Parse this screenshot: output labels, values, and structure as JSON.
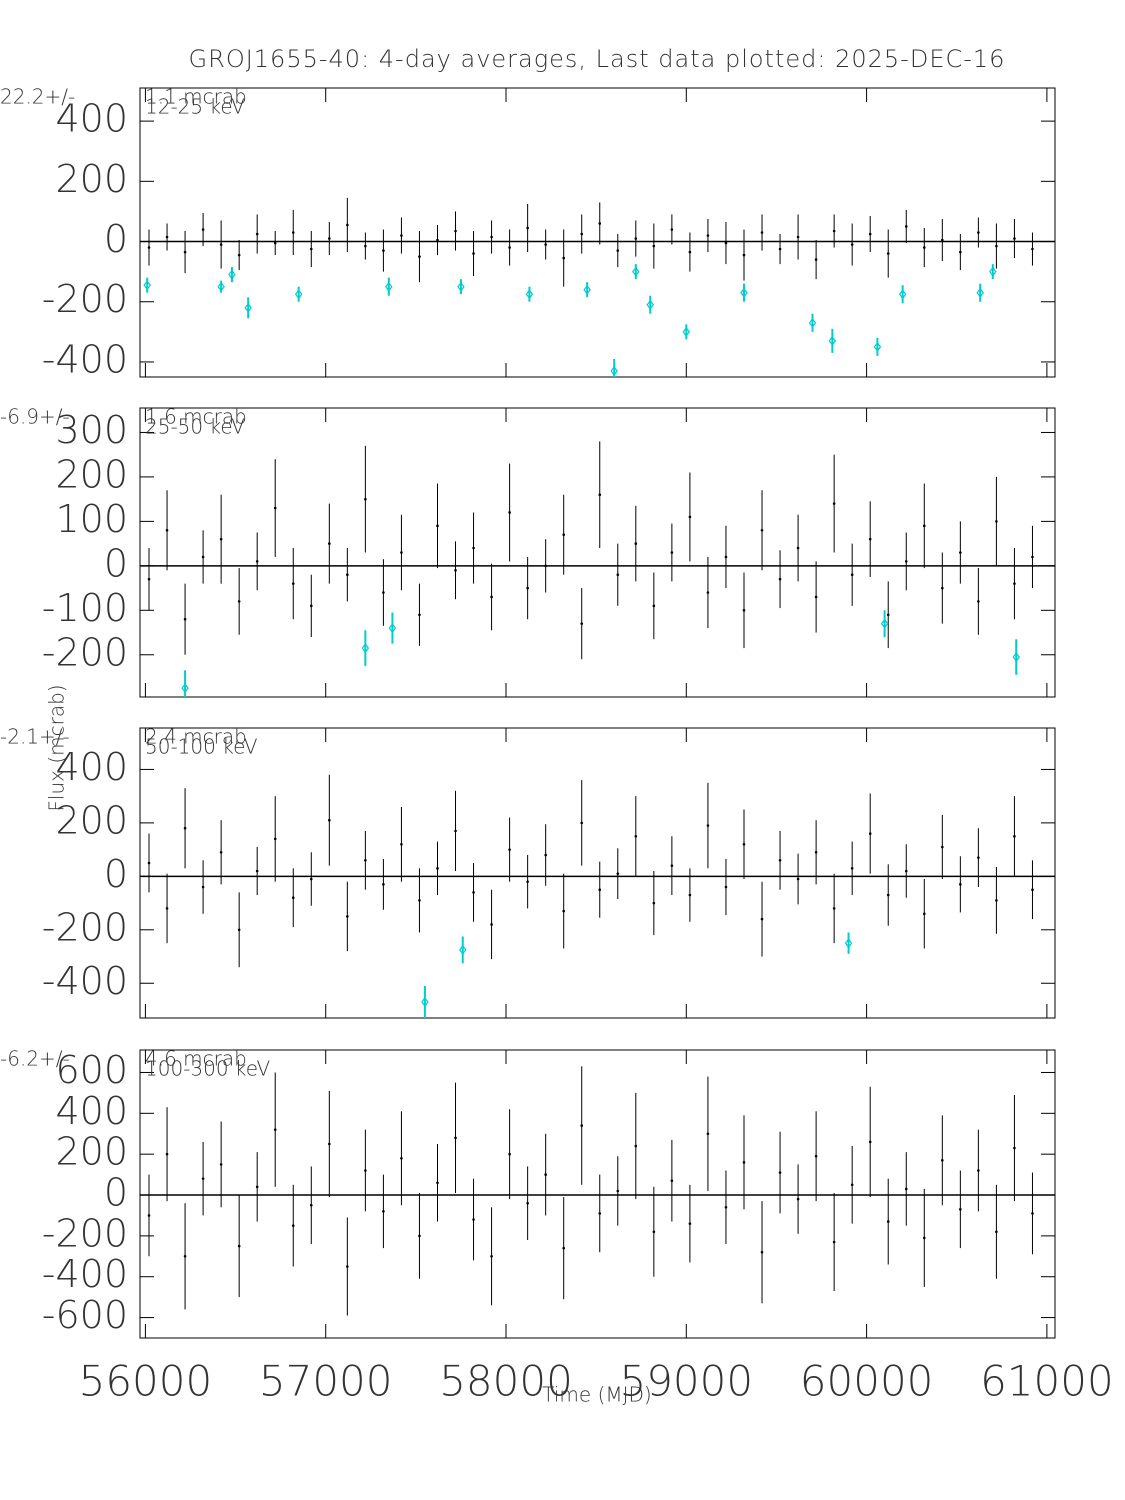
{
  "chart_data": [
    {
      "type": "errorbar",
      "title": "GROJ1655-40:  4-day averages,  Last data plotted: 2025-DEC-16",
      "band_label": "12-25 keV",
      "mean_label": "22.2+/-",
      "err_label": "1.1 mcrab",
      "xlim": [
        55970,
        61045
      ],
      "xticks": [
        56000,
        57000,
        58000,
        59000,
        60000,
        61000
      ],
      "ylim": [
        -450,
        510
      ],
      "yticks": [
        -400,
        -200,
        0,
        200,
        400
      ],
      "series": [
        {
          "color": "#000000",
          "x": [
            56020,
            56120,
            56220,
            56320,
            56420,
            56520,
            56620,
            56720,
            56820,
            56920,
            57020,
            57120,
            57220,
            57320,
            57420,
            57520,
            57620,
            57720,
            57820,
            57920,
            58020,
            58120,
            58220,
            58320,
            58420,
            58520,
            58620,
            58720,
            58820,
            58920,
            59020,
            59120,
            59220,
            59320,
            59420,
            59520,
            59620,
            59720,
            59820,
            59920,
            60020,
            60120,
            60220,
            60320,
            60420,
            60520,
            60620,
            60720,
            60820,
            60920
          ],
          "values": [
            -20,
            15,
            -35,
            40,
            -10,
            -45,
            25,
            -5,
            30,
            -25,
            10,
            55,
            -15,
            -30,
            20,
            -50,
            5,
            35,
            -40,
            15,
            -20,
            45,
            -10,
            -55,
            25,
            60,
            -30,
            10,
            -15,
            40,
            -35,
            20,
            -5,
            -45,
            30,
            -25,
            15,
            -60,
            35,
            -10,
            25,
            -40,
            50,
            -20,
            5,
            -35,
            30,
            -15,
            10,
            -25
          ],
          "errors": [
            60,
            45,
            70,
            55,
            80,
            50,
            65,
            40,
            75,
            60,
            55,
            90,
            45,
            70,
            60,
            85,
            50,
            65,
            75,
            55,
            60,
            80,
            50,
            95,
            65,
            70,
            55,
            60,
            75,
            50,
            65,
            55,
            70,
            85,
            60,
            50,
            75,
            65,
            55,
            70,
            60,
            80,
            55,
            65,
            70,
            60,
            50,
            75,
            65,
            55
          ]
        },
        {
          "color": "#00cccc",
          "x": [
            56010,
            56420,
            56480,
            56570,
            56850,
            57350,
            57750,
            58130,
            58450,
            58600,
            58720,
            58800,
            59000,
            59320,
            59700,
            59810,
            60060,
            60200,
            60630,
            60700
          ],
          "values": [
            -145,
            -150,
            -110,
            -220,
            -175,
            -150,
            -150,
            -175,
            -160,
            -430,
            -100,
            -210,
            -300,
            -170,
            -270,
            -330,
            -350,
            -175,
            -170,
            -100
          ],
          "errors": [
            25,
            20,
            25,
            35,
            25,
            30,
            25,
            25,
            25,
            40,
            25,
            30,
            25,
            30,
            30,
            40,
            30,
            30,
            30,
            25
          ]
        }
      ]
    },
    {
      "type": "errorbar",
      "band_label": "25-50 keV",
      "mean_label": "-6.9+/-",
      "err_label": "1.6 mcrab",
      "ylabel": "Flux (mcrab)",
      "xlim": [
        55970,
        61045
      ],
      "xticks": [
        56000,
        57000,
        58000,
        59000,
        60000,
        61000
      ],
      "ylim": [
        -295,
        355
      ],
      "yticks": [
        -200,
        -100,
        0,
        100,
        200,
        300
      ],
      "series": [
        {
          "color": "#000000",
          "x": [
            56020,
            56120,
            56220,
            56320,
            56420,
            56520,
            56620,
            56720,
            56820,
            56920,
            57020,
            57120,
            57220,
            57320,
            57420,
            57520,
            57620,
            57720,
            57820,
            57920,
            58020,
            58120,
            58220,
            58320,
            58420,
            58520,
            58620,
            58720,
            58820,
            58920,
            59020,
            59120,
            59220,
            59320,
            59420,
            59520,
            59620,
            59720,
            59820,
            59920,
            60020,
            60120,
            60220,
            60320,
            60420,
            60520,
            60620,
            60720,
            60820,
            60920
          ],
          "values": [
            -30,
            80,
            -120,
            20,
            60,
            -80,
            10,
            130,
            -40,
            -90,
            50,
            -20,
            150,
            -60,
            30,
            -110,
            90,
            -10,
            40,
            -70,
            120,
            -50,
            0,
            70,
            -130,
            160,
            -20,
            50,
            -90,
            30,
            110,
            -60,
            20,
            -100,
            80,
            -30,
            40,
            -70,
            140,
            -20,
            60,
            -110,
            10,
            90,
            -50,
            30,
            -80,
            100,
            -40,
            20
          ],
          "errors": [
            70,
            90,
            80,
            60,
            100,
            75,
            65,
            110,
            80,
            70,
            90,
            60,
            120,
            75,
            85,
            70,
            95,
            65,
            80,
            75,
            110,
            70,
            60,
            90,
            80,
            120,
            70,
            85,
            75,
            65,
            100,
            80,
            70,
            85,
            90,
            65,
            75,
            80,
            110,
            70,
            85,
            75,
            65,
            95,
            80,
            70,
            75,
            100,
            80,
            70
          ]
        },
        {
          "color": "#00cccc",
          "x": [
            56220,
            57220,
            57370,
            60100,
            60830
          ],
          "values": [
            -275,
            -185,
            -140,
            -130,
            -205
          ],
          "errors": [
            40,
            40,
            35,
            30,
            40
          ]
        }
      ]
    },
    {
      "type": "errorbar",
      "band_label": "50-100 keV",
      "mean_label": "-2.1+/-",
      "err_label": "2.4 mcrab",
      "xlim": [
        55970,
        61045
      ],
      "xticks": [
        56000,
        57000,
        58000,
        59000,
        60000,
        61000
      ],
      "ylim": [
        -530,
        555
      ],
      "yticks": [
        -400,
        -200,
        0,
        200,
        400
      ],
      "series": [
        {
          "color": "#000000",
          "x": [
            56020,
            56120,
            56220,
            56320,
            56420,
            56520,
            56620,
            56720,
            56820,
            56920,
            57020,
            57120,
            57220,
            57320,
            57420,
            57520,
            57620,
            57720,
            57820,
            57920,
            58020,
            58120,
            58220,
            58320,
            58420,
            58520,
            58620,
            58720,
            58820,
            58920,
            59020,
            59120,
            59220,
            59320,
            59420,
            59520,
            59620,
            59720,
            59820,
            59920,
            60020,
            60120,
            60220,
            60320,
            60420,
            60520,
            60620,
            60720,
            60820,
            60920
          ],
          "values": [
            50,
            -120,
            180,
            -40,
            90,
            -200,
            20,
            140,
            -80,
            -10,
            210,
            -150,
            60,
            -30,
            120,
            -90,
            30,
            170,
            -60,
            -180,
            100,
            -20,
            80,
            -130,
            200,
            -50,
            10,
            150,
            -100,
            40,
            -70,
            190,
            -40,
            120,
            -160,
            60,
            -10,
            90,
            -120,
            30,
            160,
            -70,
            20,
            -140,
            110,
            -30,
            70,
            -90,
            150,
            -50
          ],
          "errors": [
            110,
            130,
            150,
            100,
            120,
            140,
            90,
            160,
            110,
            100,
            170,
            130,
            110,
            95,
            140,
            120,
            100,
            150,
            110,
            130,
            120,
            100,
            115,
            140,
            160,
            105,
            95,
            150,
            120,
            110,
            100,
            160,
            105,
            130,
            140,
            110,
            95,
            120,
            130,
            100,
            150,
            115,
            100,
            130,
            120,
            105,
            110,
            125,
            150,
            110
          ]
        },
        {
          "color": "#00cccc",
          "x": [
            57550,
            57760,
            59900
          ],
          "values": [
            -470,
            -275,
            -250
          ],
          "errors": [
            60,
            50,
            40
          ]
        }
      ]
    },
    {
      "type": "errorbar",
      "band_label": "100-300 keV",
      "mean_label": "-6.2+/-",
      "err_label": "4.6 mcrab",
      "xlabel": "Time (MJD)",
      "xlim": [
        55970,
        61045
      ],
      "xticks": [
        56000,
        57000,
        58000,
        59000,
        60000,
        61000
      ],
      "ylim": [
        -700,
        710
      ],
      "yticks": [
        -600,
        -400,
        -200,
        0,
        200,
        400,
        600
      ],
      "series": [
        {
          "color": "#000000",
          "x": [
            56020,
            56120,
            56220,
            56320,
            56420,
            56520,
            56620,
            56720,
            56820,
            56920,
            57020,
            57120,
            57220,
            57320,
            57420,
            57520,
            57620,
            57720,
            57820,
            57920,
            58020,
            58120,
            58220,
            58320,
            58420,
            58520,
            58620,
            58720,
            58820,
            58920,
            59020,
            59120,
            59220,
            59320,
            59420,
            59520,
            59620,
            59720,
            59820,
            59920,
            60020,
            60120,
            60220,
            60320,
            60420,
            60520,
            60620,
            60720,
            60820,
            60920
          ],
          "values": [
            -100,
            200,
            -300,
            80,
            150,
            -250,
            40,
            320,
            -150,
            -50,
            250,
            -350,
            120,
            -80,
            180,
            -200,
            60,
            280,
            -120,
            -300,
            200,
            -40,
            100,
            -260,
            340,
            -90,
            20,
            240,
            -180,
            70,
            -140,
            300,
            -60,
            160,
            -280,
            110,
            -20,
            190,
            -230,
            50,
            260,
            -130,
            30,
            -210,
            170,
            -70,
            120,
            -180,
            230,
            -90
          ],
          "errors": [
            200,
            230,
            260,
            180,
            210,
            250,
            170,
            280,
            200,
            190,
            260,
            240,
            200,
            180,
            230,
            210,
            190,
            270,
            200,
            240,
            220,
            180,
            200,
            250,
            290,
            190,
            170,
            260,
            220,
            200,
            190,
            280,
            180,
            230,
            250,
            200,
            170,
            220,
            240,
            190,
            270,
            210,
            180,
            240,
            220,
            190,
            200,
            230,
            260,
            200
          ]
        }
      ]
    }
  ]
}
